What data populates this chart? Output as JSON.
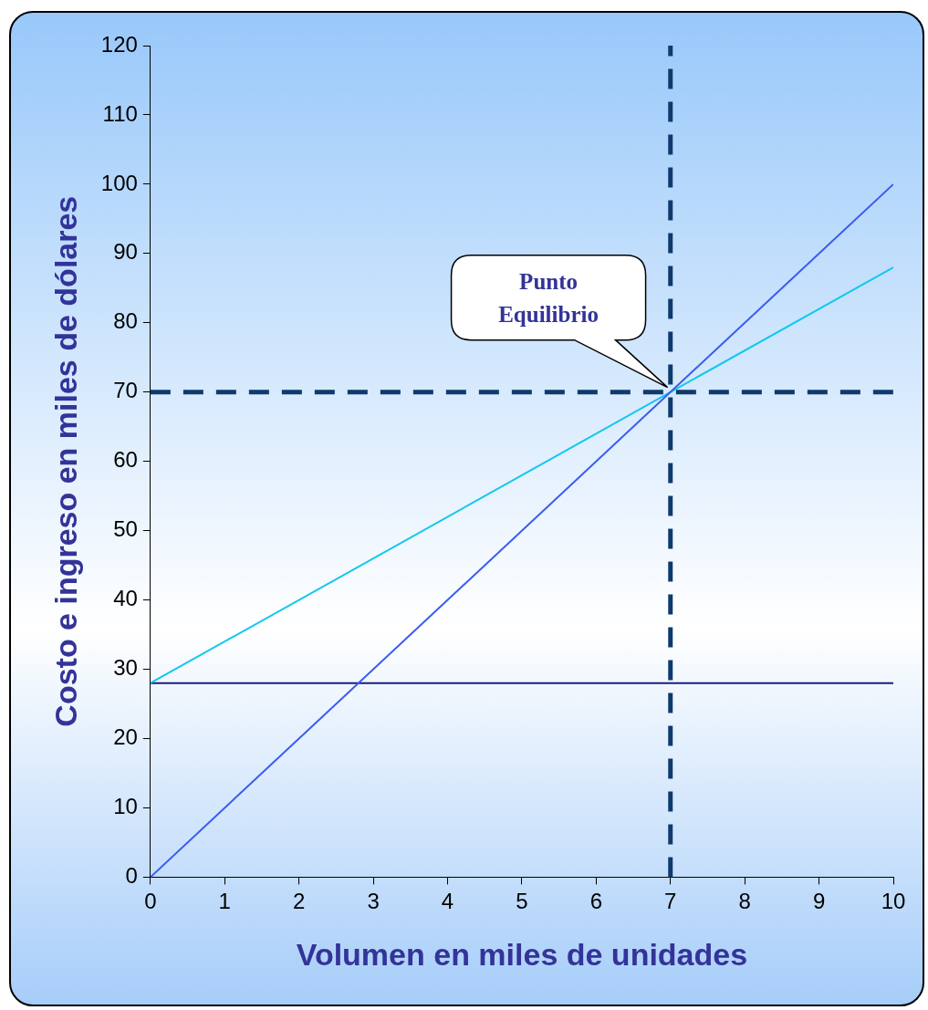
{
  "chart_data": {
    "type": "line",
    "xlabel": "Volumen en miles de unidades",
    "ylabel": "Costo e ingreso en miles de dólares",
    "xlim": [
      0,
      10
    ],
    "xticks": [
      0,
      1,
      2,
      3,
      4,
      5,
      6,
      7,
      8,
      9,
      10
    ],
    "ylim": [
      0,
      120
    ],
    "yticks": [
      0,
      10,
      20,
      30,
      40,
      50,
      60,
      70,
      80,
      90,
      100,
      110,
      120
    ],
    "x": [
      0,
      10
    ],
    "grid": false,
    "legend": false,
    "marker": "none",
    "line_style": "solid",
    "series": [
      {
        "color": "#3a5cf0",
        "values": [
          0,
          100
        ]
      },
      {
        "color": "#11c8ee",
        "values": [
          28,
          88
        ]
      },
      {
        "color": "#1c1c80",
        "values": [
          28,
          28
        ]
      }
    ],
    "ref_lines": [
      {
        "axis": "y",
        "value": 70,
        "color": "#0e3a6e",
        "line_style": "dashed"
      },
      {
        "axis": "x",
        "value": 7,
        "color": "#0e3a6e",
        "line_style": "dashed"
      }
    ],
    "annotations": [
      "Punto Equilibrio"
    ]
  }
}
